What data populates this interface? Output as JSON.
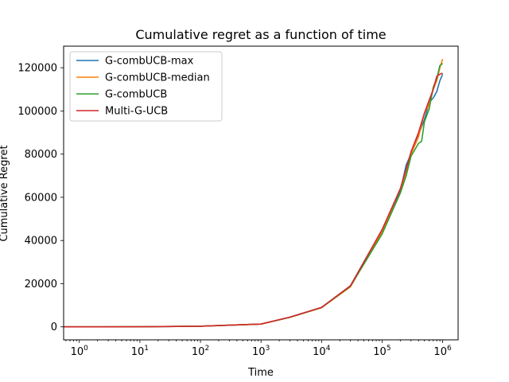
{
  "chart_data": {
    "type": "line",
    "title": "Cumulative regret as a function of time",
    "xlabel": "Time",
    "ylabel": "Cumulative Regret",
    "xscale": "log",
    "xlim": [
      0.55,
      1800000
    ],
    "ylim": [
      -6000,
      130000
    ],
    "grid": false,
    "legend_position": "top-left",
    "x_ticks": [
      {
        "value": 1,
        "base": "10",
        "exp": "0"
      },
      {
        "value": 10,
        "base": "10",
        "exp": "1"
      },
      {
        "value": 100,
        "base": "10",
        "exp": "2"
      },
      {
        "value": 1000,
        "base": "10",
        "exp": "3"
      },
      {
        "value": 10000,
        "base": "10",
        "exp": "4"
      },
      {
        "value": 100000,
        "base": "10",
        "exp": "5"
      },
      {
        "value": 1000000,
        "base": "10",
        "exp": "6"
      }
    ],
    "y_ticks": [
      {
        "value": 0,
        "label": "0"
      },
      {
        "value": 20000,
        "label": "20000"
      },
      {
        "value": 40000,
        "label": "40000"
      },
      {
        "value": 60000,
        "label": "60000"
      },
      {
        "value": 80000,
        "label": "80000"
      },
      {
        "value": 100000,
        "label": "100000"
      },
      {
        "value": 120000,
        "label": "120000"
      }
    ],
    "series": [
      {
        "name": "G-combUCB-max",
        "color": "#1f77b4",
        "x": [
          1,
          10,
          100,
          1000,
          3000,
          10000,
          30000,
          100000,
          200000,
          250000,
          300000,
          400000,
          500000,
          600000,
          700000,
          800000,
          900000,
          1000000
        ],
        "y": [
          0,
          40,
          300,
          1300,
          4500,
          9000,
          19000,
          45000,
          63000,
          75000,
          80000,
          89000,
          96000,
          104000,
          106000,
          109000,
          114000,
          117000
        ]
      },
      {
        "name": "G-combUCB-median",
        "color": "#ff7f0e",
        "x": [
          1,
          10,
          100,
          1000,
          3000,
          10000,
          30000,
          100000,
          200000,
          250000,
          300000,
          400000,
          500000,
          600000,
          700000,
          800000,
          900000,
          1000000
        ],
        "y": [
          0,
          40,
          300,
          1300,
          4400,
          8900,
          18500,
          44000,
          62000,
          71000,
          80000,
          88000,
          99000,
          103000,
          110000,
          114000,
          120000,
          124000
        ]
      },
      {
        "name": "G-combUCB",
        "color": "#2ca02c",
        "x": [
          1,
          10,
          100,
          1000,
          3000,
          10000,
          30000,
          100000,
          200000,
          250000,
          300000,
          400000,
          450000,
          500000,
          600000,
          700000,
          800000,
          900000,
          1000000
        ],
        "y": [
          0,
          40,
          300,
          1300,
          4400,
          8900,
          18800,
          43000,
          62000,
          70000,
          79000,
          85000,
          86000,
          95000,
          101000,
          111000,
          115000,
          121000,
          122000
        ]
      },
      {
        "name": "Multi-G-UCB",
        "color": "#d62728",
        "x": [
          1,
          10,
          100,
          1000,
          3000,
          10000,
          30000,
          100000,
          200000,
          250000,
          300000,
          400000,
          500000,
          600000,
          700000,
          800000,
          900000,
          1000000
        ],
        "y": [
          0,
          40,
          300,
          1300,
          4500,
          9000,
          19000,
          45000,
          64000,
          73000,
          81000,
          90000,
          99000,
          105000,
          110000,
          116000,
          117000,
          117500
        ]
      }
    ]
  }
}
